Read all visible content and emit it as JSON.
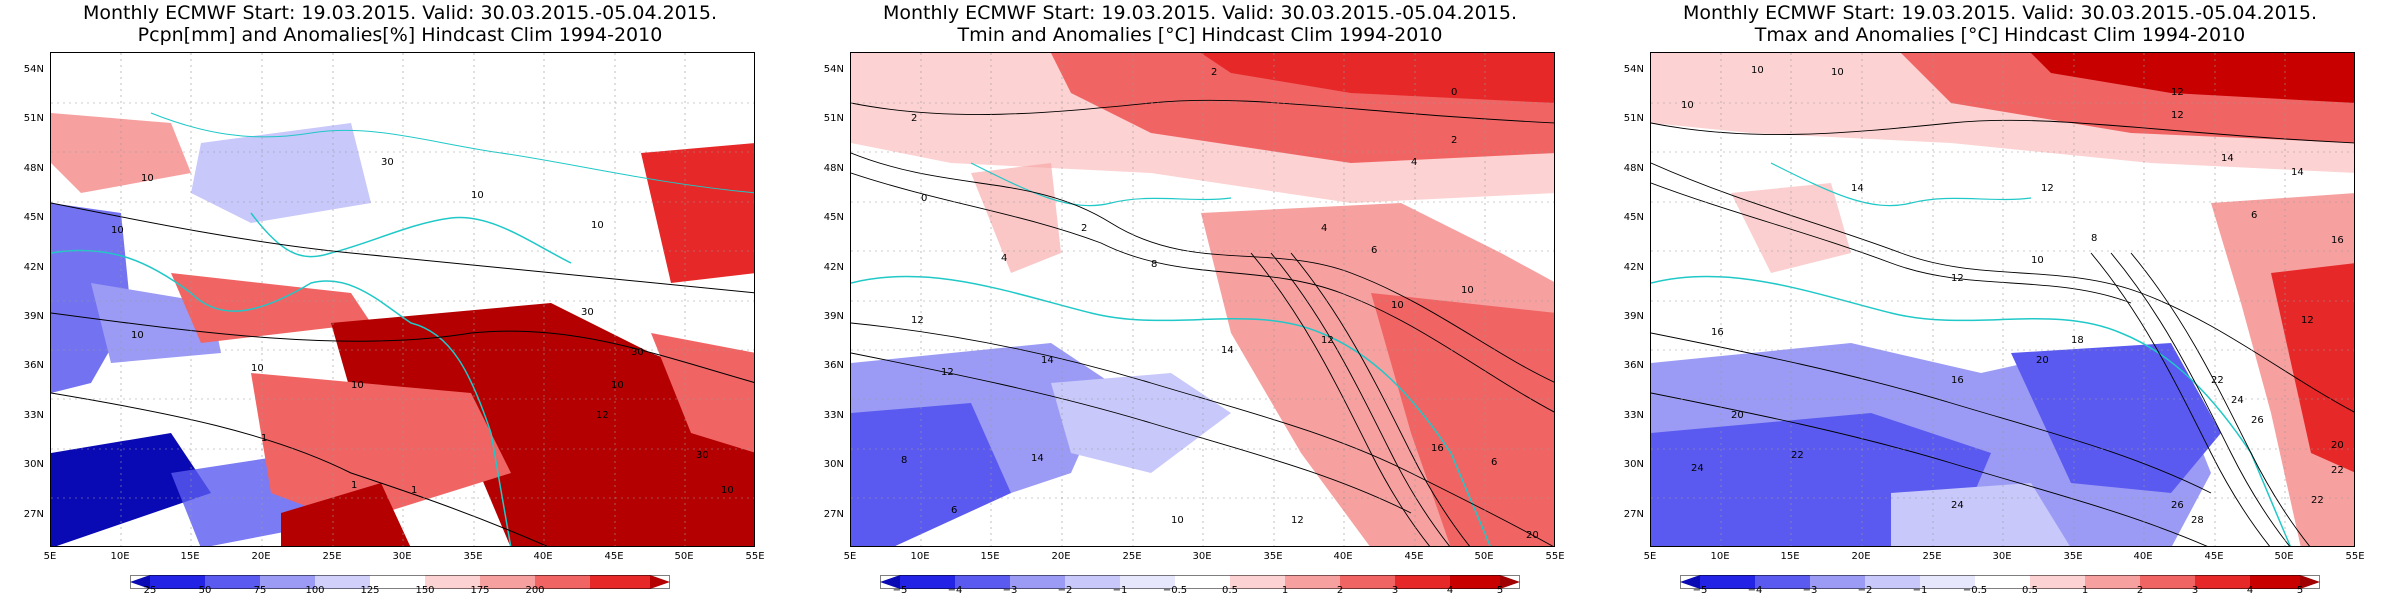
{
  "panels": [
    {
      "title_line1": "Monthly ECMWF Start: 19.03.2015. Valid: 30.03.2015.-05.04.2015.",
      "title_line2": "Pcpn[mm] and Anomalies[%] Hindcast Clim 1994-2010",
      "lat_labels": [
        "54N",
        "51N",
        "48N",
        "45N",
        "42N",
        "39N",
        "36N",
        "33N",
        "30N",
        "27N"
      ],
      "lon_labels": [
        "5E",
        "10E",
        "15E",
        "20E",
        "25E",
        "30E",
        "35E",
        "40E",
        "45E",
        "50E",
        "55E"
      ],
      "colorbar_labels": [
        "25",
        "50",
        "75",
        "100",
        "125",
        "150",
        "175",
        "200"
      ],
      "colorbar_colors": [
        "#0a0ab4",
        "#2323e6",
        "#5a5af0",
        "#9b9bf5",
        "#d0d0fa",
        "#ffffff",
        "#fcd2d2",
        "#f7a0a0",
        "#f06464",
        "#e62828",
        "#b40000"
      ],
      "contour_labels": [
        "10",
        "30",
        "10",
        "10",
        "10",
        "10",
        "30",
        "30",
        "10",
        "10",
        "10",
        "1",
        "1",
        "1",
        "12",
        "30",
        "10"
      ]
    },
    {
      "title_line1": "Monthly ECMWF Start: 19.03.2015. Valid: 30.03.2015.-05.04.2015.",
      "title_line2": "Tmin and Anomalies [°C] Hindcast Clim 1994-2010",
      "lat_labels": [
        "54N",
        "51N",
        "48N",
        "45N",
        "42N",
        "39N",
        "36N",
        "33N",
        "30N",
        "27N"
      ],
      "lon_labels": [
        "5E",
        "10E",
        "15E",
        "20E",
        "25E",
        "30E",
        "35E",
        "40E",
        "45E",
        "50E",
        "55E"
      ],
      "colorbar_labels": [
        "−5",
        "−4",
        "−3",
        "−2",
        "−1",
        "−0.5",
        "0.5",
        "1",
        "2",
        "3",
        "4",
        "5"
      ],
      "colorbar_colors": [
        "#0a0ab4",
        "#2323e6",
        "#5a5af0",
        "#9b9bf5",
        "#c8c8fa",
        "#e6e6fc",
        "#ffffff",
        "#fcd2d2",
        "#f7a0a0",
        "#f06464",
        "#e62828",
        "#c80000",
        "#a00000"
      ],
      "contour_labels": [
        "2",
        "0",
        "2",
        "2",
        "4",
        "0",
        "2",
        "4",
        "6",
        "8",
        "10",
        "12",
        "14",
        "12",
        "14",
        "8",
        "6",
        "10",
        "12",
        "16",
        "20",
        "6",
        "4",
        "10",
        "12",
        "14"
      ]
    },
    {
      "title_line1": "Monthly ECMWF Start: 19.03.2015. Valid: 30.03.2015.-05.04.2015.",
      "title_line2": "Tmax and Anomalies [°C] Hindcast Clim 1994-2010",
      "lat_labels": [
        "54N",
        "51N",
        "48N",
        "45N",
        "42N",
        "39N",
        "36N",
        "33N",
        "30N",
        "27N"
      ],
      "lon_labels": [
        "5E",
        "10E",
        "15E",
        "20E",
        "25E",
        "30E",
        "35E",
        "40E",
        "45E",
        "50E",
        "55E"
      ],
      "colorbar_labels": [
        "−5",
        "−4",
        "−3",
        "−2",
        "−1",
        "−0.5",
        "0.5",
        "1",
        "2",
        "3",
        "4",
        "5"
      ],
      "colorbar_colors": [
        "#0a0ab4",
        "#2323e6",
        "#5a5af0",
        "#9b9bf5",
        "#c8c8fa",
        "#e6e6fc",
        "#ffffff",
        "#fcd2d2",
        "#f7a0a0",
        "#f06464",
        "#e62828",
        "#c80000",
        "#a00000"
      ],
      "contour_labels": [
        "10",
        "10",
        "12",
        "10",
        "12",
        "14",
        "14",
        "12",
        "14",
        "16",
        "12",
        "10",
        "8",
        "6",
        "16",
        "20",
        "22",
        "24",
        "26",
        "18",
        "20",
        "22",
        "24",
        "16",
        "12",
        "22",
        "28",
        "26",
        "24",
        "22",
        "20"
      ]
    }
  ]
}
